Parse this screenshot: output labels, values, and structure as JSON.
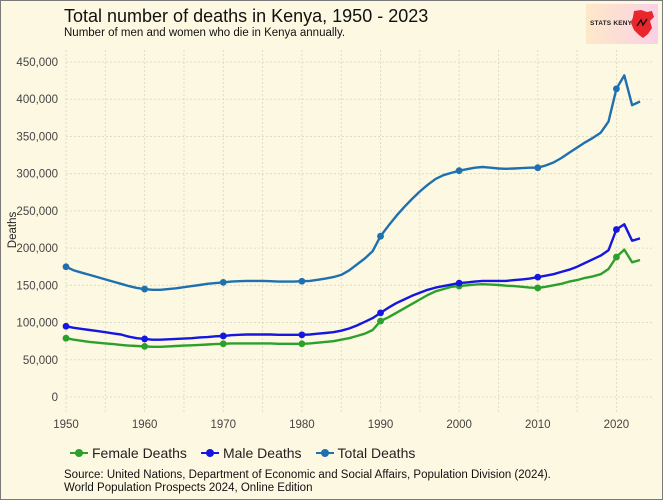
{
  "header": {
    "title": "Total number of deaths in Kenya, 1950 - 2023",
    "subtitle": "Number of men and women who die in Kenya annually."
  },
  "logo": {
    "text": "STATS KENYA",
    "icon": "kenya-map-icon",
    "color": "#e8262b"
  },
  "source": {
    "line1": "Source: United Nations, Department of Economic and Social Affairs, Population Division (2024).",
    "line2": "World Population Prospects 2024, Online Edition"
  },
  "colors": {
    "background": "#fdf8e1",
    "grid": "#d7d8c0"
  },
  "chart_data": {
    "type": "line",
    "ylabel": "Deaths",
    "xlabel": "",
    "xlim": [
      1950,
      2023
    ],
    "ylim": [
      0,
      450000
    ],
    "grid": true,
    "legend_position": "bottom",
    "x_ticks": [
      1950,
      1960,
      1970,
      1980,
      1990,
      2000,
      2010,
      2020
    ],
    "x_tick_labels": [
      "1950",
      "1960",
      "1970",
      "1980",
      "1990",
      "2000",
      "2010",
      "2020"
    ],
    "y_ticks": [
      0,
      50000,
      100000,
      150000,
      200000,
      250000,
      300000,
      350000,
      400000,
      450000
    ],
    "y_tick_labels": [
      "0",
      "50,000",
      "100,000",
      "150,000",
      "200,000",
      "250,000",
      "300,000",
      "350,000",
      "400,000",
      "450,000"
    ],
    "marker_years": [
      1950,
      1960,
      1970,
      1980,
      1990,
      2000,
      2010,
      2020
    ],
    "x": [
      1950,
      1951,
      1952,
      1953,
      1954,
      1955,
      1956,
      1957,
      1958,
      1959,
      1960,
      1961,
      1962,
      1963,
      1964,
      1965,
      1966,
      1967,
      1968,
      1969,
      1970,
      1971,
      1972,
      1973,
      1974,
      1975,
      1976,
      1977,
      1978,
      1979,
      1980,
      1981,
      1982,
      1983,
      1984,
      1985,
      1986,
      1987,
      1988,
      1989,
      1990,
      1991,
      1992,
      1993,
      1994,
      1995,
      1996,
      1997,
      1998,
      1999,
      2000,
      2001,
      2002,
      2003,
      2004,
      2005,
      2006,
      2007,
      2008,
      2009,
      2010,
      2011,
      2012,
      2013,
      2014,
      2015,
      2016,
      2017,
      2018,
      2019,
      2020,
      2021,
      2022,
      2023
    ],
    "series": [
      {
        "name": "Female Deaths",
        "color": "#2ca02c",
        "values": [
          79000,
          77000,
          75500,
          74000,
          73000,
          72000,
          71000,
          70000,
          69000,
          68500,
          68000,
          67500,
          67500,
          68000,
          68500,
          69000,
          69500,
          70000,
          70500,
          71000,
          71500,
          72000,
          72000,
          72000,
          72000,
          72000,
          72000,
          71500,
          71500,
          71500,
          71500,
          72000,
          73000,
          74000,
          75000,
          77000,
          79000,
          82000,
          85000,
          90000,
          102000,
          107000,
          113000,
          119000,
          125000,
          131000,
          137000,
          142000,
          145000,
          148000,
          149000,
          150000,
          151000,
          151500,
          151000,
          150500,
          149500,
          149000,
          148000,
          147000,
          146500,
          148000,
          150000,
          152000,
          155000,
          157000,
          160000,
          162000,
          165000,
          172000,
          188000,
          198000,
          181000,
          184000
        ]
      },
      {
        "name": "Male Deaths",
        "color": "#1616e0",
        "values": [
          95000,
          93000,
          91500,
          90000,
          88500,
          87000,
          85500,
          84000,
          81000,
          79000,
          78000,
          77000,
          77000,
          77500,
          78000,
          78500,
          79000,
          80000,
          80500,
          81500,
          82000,
          83000,
          83500,
          84000,
          84000,
          84000,
          84000,
          83500,
          83500,
          83500,
          83500,
          84000,
          85000,
          86000,
          87000,
          89000,
          92000,
          96000,
          101000,
          106000,
          113000,
          120000,
          126000,
          131000,
          136000,
          140000,
          144000,
          147000,
          149000,
          151000,
          153000,
          154000,
          155000,
          156000,
          156000,
          156000,
          156000,
          157000,
          158000,
          159000,
          161000,
          163000,
          165000,
          168000,
          171000,
          175000,
          180000,
          185000,
          190000,
          197000,
          225000,
          232000,
          210000,
          213000
        ]
      },
      {
        "name": "Total Deaths",
        "color": "#1f70b0",
        "values": [
          175000,
          170000,
          167000,
          164000,
          161000,
          158000,
          155000,
          152000,
          149000,
          146500,
          145000,
          144000,
          144000,
          145000,
          146000,
          147500,
          149000,
          150500,
          152000,
          153000,
          154000,
          155000,
          155500,
          156000,
          156000,
          156000,
          155500,
          155000,
          155000,
          155000,
          155500,
          156000,
          157500,
          159000,
          161000,
          164000,
          170000,
          178000,
          186000,
          196000,
          216000,
          230000,
          243000,
          255000,
          266000,
          276000,
          285000,
          293000,
          298000,
          301000,
          304000,
          306000,
          308000,
          309000,
          308000,
          307000,
          306500,
          307000,
          307500,
          308000,
          308000,
          311000,
          315000,
          321000,
          328000,
          335000,
          342000,
          348000,
          355000,
          370000,
          414000,
          432000,
          392000,
          397000
        ]
      }
    ]
  }
}
